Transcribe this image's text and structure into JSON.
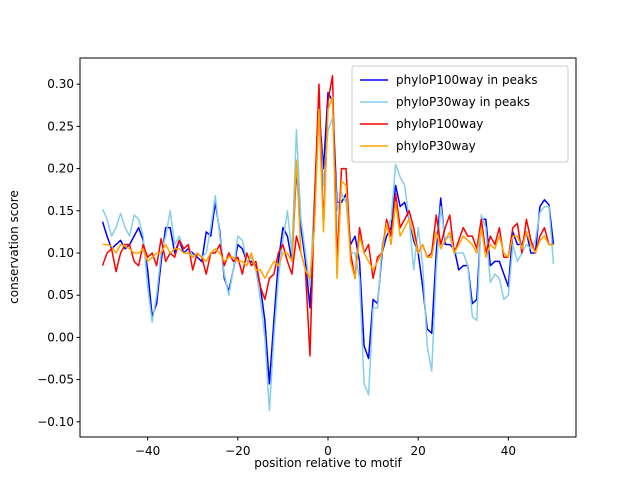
{
  "chart_data": {
    "type": "line",
    "xlabel": "position relative to motif",
    "ylabel": "conservation score",
    "x": [
      -50,
      -49,
      -48,
      -47,
      -46,
      -45,
      -44,
      -43,
      -42,
      -41,
      -40,
      -39,
      -38,
      -37,
      -36,
      -35,
      -34,
      -33,
      -32,
      -31,
      -30,
      -29,
      -28,
      -27,
      -26,
      -25,
      -24,
      -23,
      -22,
      -21,
      -20,
      -19,
      -18,
      -17,
      -16,
      -15,
      -14,
      -13,
      -12,
      -11,
      -10,
      -9,
      -8,
      -7,
      -6,
      -5,
      -4,
      -3,
      -2,
      -1,
      0,
      1,
      2,
      3,
      4,
      5,
      6,
      7,
      8,
      9,
      10,
      11,
      12,
      13,
      14,
      15,
      16,
      17,
      18,
      19,
      20,
      21,
      22,
      23,
      24,
      25,
      26,
      27,
      28,
      29,
      30,
      31,
      32,
      33,
      34,
      35,
      36,
      37,
      38,
      39,
      40,
      41,
      42,
      43,
      44,
      45,
      46,
      47,
      48,
      49,
      50
    ],
    "series": [
      {
        "name": "phyloP100way in peaks",
        "color": "#0000ff",
        "values": [
          0.137,
          0.12,
          0.105,
          0.11,
          0.115,
          0.105,
          0.11,
          0.12,
          0.13,
          0.115,
          0.08,
          0.025,
          0.04,
          0.09,
          0.13,
          0.13,
          0.1,
          0.115,
          0.1,
          0.105,
          0.1,
          0.095,
          0.09,
          0.125,
          0.12,
          0.16,
          0.125,
          0.07,
          0.055,
          0.08,
          0.11,
          0.105,
          0.09,
          0.09,
          0.085,
          0.06,
          0.02,
          -0.055,
          0.02,
          0.09,
          0.13,
          0.12,
          0.09,
          0.2,
          0.13,
          0.09,
          0.035,
          0.15,
          0.27,
          0.2,
          0.29,
          0.28,
          0.16,
          0.16,
          0.17,
          0.11,
          0.12,
          0.09,
          -0.01,
          -0.025,
          0.045,
          0.04,
          0.1,
          0.12,
          0.13,
          0.18,
          0.155,
          0.16,
          0.14,
          0.115,
          0.1,
          0.06,
          0.01,
          0.005,
          0.1,
          0.165,
          0.11,
          0.11,
          0.105,
          0.08,
          0.085,
          0.085,
          0.04,
          0.045,
          0.14,
          0.14,
          0.085,
          0.09,
          0.09,
          0.075,
          0.06,
          0.125,
          0.11,
          0.11,
          0.125,
          0.1,
          0.1,
          0.155,
          0.163,
          0.157,
          0.11
        ]
      },
      {
        "name": "phyloP30way in peaks",
        "color": "#87ceeb",
        "values": [
          0.152,
          0.14,
          0.12,
          0.13,
          0.147,
          0.13,
          0.12,
          0.145,
          0.14,
          0.12,
          0.06,
          0.018,
          0.05,
          0.1,
          0.12,
          0.15,
          0.11,
          0.12,
          0.105,
          0.11,
          0.095,
          0.1,
          0.095,
          0.1,
          0.13,
          0.168,
          0.12,
          0.075,
          0.05,
          0.08,
          0.12,
          0.115,
          0.09,
          0.095,
          0.08,
          0.045,
          0.0,
          -0.087,
          0.0,
          0.07,
          0.115,
          0.15,
          0.1,
          0.246,
          0.14,
          0.1,
          0.06,
          0.17,
          0.27,
          0.18,
          0.245,
          0.26,
          0.15,
          0.17,
          0.16,
          0.1,
          0.1,
          0.07,
          -0.055,
          -0.068,
          0.035,
          0.035,
          0.11,
          0.13,
          0.14,
          0.205,
          0.19,
          0.18,
          0.14,
          0.08,
          0.13,
          0.085,
          -0.01,
          -0.04,
          0.08,
          0.155,
          0.115,
          0.12,
          0.1,
          0.1,
          0.1,
          0.085,
          0.025,
          0.02,
          0.145,
          0.13,
          0.065,
          0.075,
          0.07,
          0.045,
          0.05,
          0.11,
          0.09,
          0.1,
          0.11,
          0.105,
          0.115,
          0.148,
          0.155,
          0.155,
          0.087
        ]
      },
      {
        "name": "phyloP100way",
        "color": "#ff0000",
        "values": [
          0.085,
          0.1,
          0.105,
          0.078,
          0.1,
          0.11,
          0.11,
          0.09,
          0.085,
          0.11,
          0.095,
          0.1,
          0.085,
          0.117,
          0.09,
          0.1,
          0.095,
          0.115,
          0.105,
          0.11,
          0.08,
          0.1,
          0.095,
          0.075,
          0.1,
          0.1,
          0.11,
          0.085,
          0.1,
          0.09,
          0.095,
          0.075,
          0.1,
          0.085,
          0.09,
          0.06,
          0.045,
          0.07,
          0.075,
          0.1,
          0.11,
          0.09,
          0.075,
          0.12,
          0.1,
          0.08,
          -0.022,
          0.16,
          0.3,
          0.13,
          0.28,
          0.31,
          0.09,
          0.2,
          0.2,
          0.1,
          0.07,
          0.13,
          0.1,
          0.11,
          0.07,
          0.095,
          0.1,
          0.14,
          0.12,
          0.17,
          0.13,
          0.14,
          0.15,
          0.13,
          0.1,
          0.11,
          0.095,
          0.1,
          0.145,
          0.11,
          0.13,
          0.145,
          0.1,
          0.115,
          0.13,
          0.12,
          0.12,
          0.105,
          0.14,
          0.1,
          0.12,
          0.11,
          0.13,
          0.095,
          0.095,
          0.13,
          0.135,
          0.1,
          0.14,
          0.115,
          0.1,
          0.12,
          0.13,
          0.11,
          0.11
        ]
      },
      {
        "name": "phyloP30way",
        "color": "#ffa500",
        "values": [
          0.11,
          0.11,
          0.108,
          0.1,
          0.11,
          0.108,
          0.105,
          0.1,
          0.1,
          0.105,
          0.09,
          0.095,
          0.1,
          0.1,
          0.11,
          0.1,
          0.105,
          0.105,
          0.1,
          0.1,
          0.095,
          0.1,
          0.095,
          0.09,
          0.1,
          0.105,
          0.1,
          0.09,
          0.095,
          0.095,
          0.09,
          0.09,
          0.085,
          0.1,
          0.08,
          0.08,
          0.07,
          0.08,
          0.09,
          0.085,
          0.1,
          0.1,
          0.09,
          0.21,
          0.1,
          0.08,
          0.07,
          0.13,
          0.27,
          0.125,
          0.27,
          0.285,
          0.07,
          0.185,
          0.18,
          0.09,
          0.07,
          0.12,
          0.1,
          0.09,
          0.08,
          0.09,
          0.1,
          0.135,
          0.11,
          0.16,
          0.12,
          0.13,
          0.14,
          0.12,
          0.1,
          0.11,
          0.095,
          0.095,
          0.125,
          0.105,
          0.115,
          0.125,
          0.1,
          0.11,
          0.12,
          0.115,
          0.11,
          0.1,
          0.13,
          0.095,
          0.11,
          0.105,
          0.12,
          0.1,
          0.095,
          0.12,
          0.12,
          0.105,
          0.125,
          0.11,
          0.1,
          0.115,
          0.12,
          0.11,
          0.11
        ]
      }
    ],
    "xlim": [
      -55,
      55
    ],
    "ylim": [
      -0.118,
      0.331
    ],
    "xticks": [
      {
        "value": -40,
        "label": "−40"
      },
      {
        "value": -20,
        "label": "−20"
      },
      0,
      20,
      40
    ],
    "yticks": [
      {
        "value": -0.1,
        "label": "−0.10"
      },
      {
        "value": -0.05,
        "label": "−0.05"
      },
      {
        "value": 0,
        "label": "0.00"
      },
      {
        "value": 0.05,
        "label": "0.05"
      },
      {
        "value": 0.1,
        "label": "0.10"
      },
      {
        "value": 0.15,
        "label": "0.15"
      },
      {
        "value": 0.2,
        "label": "0.20"
      },
      {
        "value": 0.25,
        "label": "0.25"
      },
      {
        "value": 0.3,
        "label": "0.30"
      }
    ],
    "legend": "upper right"
  }
}
